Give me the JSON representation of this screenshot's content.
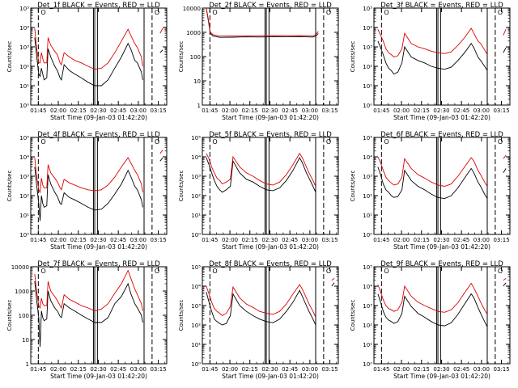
{
  "colors": {
    "events": "#000000",
    "lld": "#dd0000",
    "axis": "#000000",
    "background": "#ffffff"
  },
  "common": {
    "xlabel": "Start Time (09-Jan-03 01:42:20)",
    "ylabel": "Counts/sec",
    "xtick_labels": [
      "01:45",
      "02:00",
      "02:15",
      "02:30",
      "02:45",
      "03:00",
      "03:15"
    ],
    "xtick_minutes": [
      2.67,
      17.67,
      32.67,
      47.67,
      62.67,
      77.67,
      92.67
    ],
    "xlim_minutes": [
      -3,
      99
    ],
    "corner_glyph": "O"
  },
  "chart_data": [
    {
      "type": "line",
      "title": "Det_1f BLACK = Events, RED = LLD",
      "yscale": "log",
      "ylim": [
        1,
        100000
      ],
      "ytick_labels": [
        "10⁰",
        "10¹",
        "10²",
        "10³",
        "10⁴",
        "10⁵"
      ],
      "x_minutes": [
        0,
        1.5,
        3,
        4,
        5,
        6,
        7,
        9,
        10,
        12,
        15,
        17,
        19,
        20,
        22,
        26,
        30,
        35,
        40,
        45,
        50,
        55,
        60,
        65,
        70,
        72,
        75,
        77,
        80,
        81,
        82,
        83,
        86,
        88,
        90,
        92,
        94,
        96
      ],
      "series": [
        {
          "name": "Events",
          "values": [
            3000,
            300,
            40,
            30,
            80,
            40,
            20,
            25,
            800,
            300,
            100,
            60,
            25,
            20,
            120,
            60,
            40,
            25,
            15,
            10,
            10,
            20,
            80,
            300,
            1500,
            800,
            200,
            150,
            50,
            20,
            null,
            null,
            null,
            null,
            null,
            null,
            500,
            700
          ]
        },
        {
          "name": "LLD",
          "values": [
            9000,
            800,
            150,
            150,
            500,
            250,
            150,
            150,
            3000,
            1200,
            600,
            400,
            150,
            120,
            500,
            300,
            200,
            150,
            100,
            70,
            80,
            150,
            500,
            2000,
            8000,
            4000,
            1500,
            900,
            300,
            100,
            null,
            null,
            null,
            null,
            null,
            null,
            5000,
            9000
          ]
        }
      ],
      "vlines_dashed": [
        2.67,
        88
      ],
      "vlines_solid": [
        44,
        45,
        47,
        82
      ]
    },
    {
      "type": "line",
      "title": "Det_2f BLACK = Events, RED = LLD",
      "yscale": "log",
      "ylim": [
        1,
        10000
      ],
      "ytick_labels": [
        "1",
        "10",
        "100",
        "1000",
        "10000"
      ],
      "x_minutes": [
        0,
        1.5,
        3,
        5,
        10,
        20,
        30,
        40,
        50,
        60,
        70,
        75,
        80,
        82,
        84,
        86,
        88,
        90,
        92,
        94,
        96
      ],
      "series": [
        {
          "name": "Events",
          "values": [
            12000,
            3000,
            900,
            700,
            620,
            630,
            650,
            640,
            660,
            650,
            660,
            650,
            640,
            700,
            900,
            null,
            null,
            null,
            null,
            null,
            null
          ]
        },
        {
          "name": "LLD",
          "values": [
            14000,
            3500,
            1000,
            800,
            700,
            700,
            720,
            720,
            740,
            730,
            740,
            730,
            720,
            800,
            1100,
            null,
            null,
            null,
            null,
            null,
            null
          ]
        }
      ],
      "vlines_dashed": [
        2.67,
        88
      ],
      "vlines_solid": [
        44,
        45,
        47,
        82
      ]
    },
    {
      "type": "line",
      "title": "Det_3f BLACK = Events, RED = LLD",
      "yscale": "log",
      "ylim": [
        1,
        100000
      ],
      "ytick_labels": [
        "10⁰",
        "10¹",
        "10²",
        "10³",
        "10⁴",
        "10⁵"
      ],
      "x_minutes": [
        0,
        2,
        4,
        6,
        8,
        10,
        12,
        15,
        18,
        20,
        25,
        30,
        35,
        40,
        45,
        50,
        55,
        60,
        65,
        70,
        72,
        75,
        77,
        80,
        82,
        86,
        88,
        90,
        92,
        94,
        96
      ],
      "series": [
        {
          "name": "Events",
          "values": [
            2000,
            900,
            400,
            150,
            80,
            60,
            40,
            50,
            150,
            1000,
            300,
            200,
            150,
            100,
            80,
            70,
            90,
            200,
            500,
            1500,
            900,
            300,
            200,
            100,
            60,
            null,
            null,
            null,
            null,
            500,
            900
          ]
        },
        {
          "name": "LLD",
          "values": [
            8000,
            4000,
            2000,
            800,
            500,
            400,
            300,
            350,
            800,
            5000,
            1500,
            1000,
            800,
            600,
            500,
            450,
            550,
            1200,
            3000,
            9000,
            5000,
            2000,
            1500,
            700,
            400,
            null,
            null,
            null,
            null,
            4000,
            8000
          ]
        }
      ],
      "vlines_dashed": [
        2.67,
        88
      ],
      "vlines_solid": [
        44,
        45,
        47,
        82
      ]
    },
    {
      "type": "line",
      "title": "Det_4f BLACK = Events, RED = LLD",
      "yscale": "log",
      "ylim": [
        1,
        100000
      ],
      "ytick_labels": [
        "10⁰",
        "10¹",
        "10²",
        "10³",
        "10⁴",
        "10⁵"
      ],
      "x_minutes": [
        0,
        1.5,
        3,
        4,
        5,
        6,
        7,
        9,
        10,
        12,
        15,
        17,
        19,
        20,
        22,
        26,
        30,
        35,
        40,
        45,
        50,
        55,
        60,
        65,
        70,
        72,
        75,
        77,
        80,
        81,
        82,
        84,
        86,
        88,
        90,
        92,
        94,
        96
      ],
      "series": [
        {
          "name": "Events",
          "values": [
            3000,
            300,
            40,
            5,
            100,
            40,
            25,
            30,
            1200,
            400,
            150,
            90,
            40,
            35,
            140,
            80,
            60,
            40,
            25,
            18,
            20,
            40,
            120,
            400,
            2000,
            1000,
            300,
            200,
            60,
            25,
            null,
            null,
            null,
            null,
            null,
            null,
            6000,
            9000
          ]
        },
        {
          "name": "LLD",
          "values": [
            9000,
            900,
            200,
            150,
            800,
            350,
            250,
            250,
            4000,
            1500,
            800,
            500,
            250,
            200,
            700,
            450,
            350,
            250,
            200,
            180,
            200,
            350,
            900,
            3000,
            9000,
            5000,
            2000,
            1200,
            400,
            150,
            null,
            null,
            null,
            null,
            null,
            null,
            15000,
            22000
          ]
        }
      ],
      "vlines_dashed": [
        2.67,
        88
      ],
      "vlines_solid": [
        44,
        45,
        47,
        82
      ]
    },
    {
      "type": "line",
      "title": "Det_5f BLACK = Events, RED = LLD",
      "yscale": "log",
      "ylim": [
        1,
        100000
      ],
      "ytick_labels": [
        "10⁰",
        "10¹",
        "10²",
        "10³",
        "10⁴",
        "10⁵"
      ],
      "x_minutes": [
        0,
        2,
        4,
        6,
        8,
        10,
        12,
        15,
        18,
        20,
        25,
        30,
        35,
        40,
        45,
        50,
        55,
        60,
        65,
        70,
        72,
        75,
        77,
        80,
        82,
        86,
        88,
        90,
        92,
        94,
        96
      ],
      "series": [
        {
          "name": "Events",
          "values": [
            9000,
            4000,
            1500,
            600,
            300,
            200,
            150,
            200,
            300,
            6000,
            1500,
            700,
            500,
            300,
            200,
            180,
            250,
            600,
            2000,
            9000,
            5000,
            1500,
            800,
            300,
            150,
            null,
            null,
            null,
            null,
            null,
            null
          ]
        },
        {
          "name": "LLD",
          "values": [
            15000,
            8000,
            3000,
            1500,
            800,
            600,
            400,
            500,
            700,
            10000,
            3000,
            1500,
            1000,
            600,
            400,
            350,
            500,
            1200,
            4000,
            15000,
            9000,
            3000,
            1500,
            600,
            300,
            null,
            null,
            null,
            null,
            null,
            null
          ]
        }
      ],
      "vlines_dashed": [
        2.67,
        88
      ],
      "vlines_solid": [
        44,
        45,
        47,
        82
      ]
    },
    {
      "type": "line",
      "title": "Det_6f BLACK = Events, RED = LLD",
      "yscale": "log",
      "ylim": [
        1,
        100000
      ],
      "ytick_labels": [
        "10⁰",
        "10¹",
        "10²",
        "10³",
        "10⁴",
        "10⁵"
      ],
      "x_minutes": [
        0,
        2,
        4,
        6,
        8,
        10,
        12,
        15,
        18,
        20,
        25,
        30,
        35,
        40,
        45,
        50,
        55,
        60,
        65,
        70,
        72,
        75,
        77,
        80,
        82,
        86,
        88,
        90,
        92,
        94,
        96
      ],
      "series": [
        {
          "name": "Events",
          "values": [
            3000,
            1200,
            400,
            200,
            150,
            100,
            80,
            90,
            200,
            2000,
            600,
            300,
            200,
            120,
            80,
            70,
            100,
            250,
            800,
            2500,
            1500,
            500,
            300,
            120,
            70,
            null,
            null,
            null,
            null,
            1500,
            2500
          ]
        },
        {
          "name": "LLD",
          "values": [
            10000,
            5000,
            2000,
            900,
            600,
            450,
            350,
            400,
            900,
            8000,
            2500,
            1200,
            800,
            500,
            350,
            300,
            400,
            1000,
            3000,
            9000,
            6000,
            2000,
            1200,
            500,
            300,
            null,
            null,
            null,
            null,
            8000,
            12000
          ]
        }
      ],
      "vlines_dashed": [
        2.67,
        88
      ],
      "vlines_solid": [
        44,
        45,
        47,
        82
      ]
    },
    {
      "type": "line",
      "title": "Det_7f BLACK = Events, RED = LLD",
      "yscale": "log",
      "ylim": [
        1,
        10000
      ],
      "ytick_labels": [
        "1",
        "10",
        "100",
        "1000",
        "10000"
      ],
      "x_minutes": [
        0,
        1.5,
        3,
        4,
        5,
        6,
        7,
        9,
        10,
        12,
        15,
        17,
        19,
        20,
        22,
        26,
        30,
        35,
        40,
        45,
        50,
        55,
        60,
        65,
        70,
        72,
        75,
        77,
        80,
        81,
        82,
        84,
        86,
        88,
        90,
        92,
        94,
        96
      ],
      "series": [
        {
          "name": "Events",
          "values": [
            2500,
            400,
            80,
            5,
            150,
            80,
            60,
            70,
            1000,
            400,
            200,
            150,
            90,
            80,
            300,
            200,
            150,
            100,
            70,
            50,
            50,
            80,
            300,
            600,
            2000,
            800,
            300,
            200,
            100,
            50,
            null,
            null,
            null,
            null,
            null,
            null,
            null,
            null
          ]
        },
        {
          "name": "LLD",
          "values": [
            5000,
            900,
            250,
            200,
            500,
            300,
            250,
            250,
            2500,
            1000,
            600,
            400,
            250,
            200,
            700,
            450,
            350,
            250,
            200,
            150,
            180,
            300,
            800,
            2000,
            7000,
            3500,
            1200,
            700,
            300,
            150,
            null,
            null,
            null,
            null,
            null,
            null,
            null,
            null
          ]
        }
      ],
      "vlines_dashed": [
        2.67,
        88
      ],
      "vlines_solid": [
        44,
        45,
        47,
        82
      ]
    },
    {
      "type": "line",
      "title": "Det_8f BLACK = Events, RED = LLD",
      "yscale": "log",
      "ylim": [
        1,
        100000
      ],
      "ytick_labels": [
        "10⁰",
        "10¹",
        "10²",
        "10³",
        "10⁴",
        "10⁵"
      ],
      "x_minutes": [
        0,
        2,
        4,
        6,
        8,
        10,
        12,
        15,
        18,
        20,
        25,
        30,
        35,
        40,
        45,
        50,
        55,
        60,
        65,
        70,
        72,
        75,
        77,
        80,
        82,
        86,
        88,
        90,
        92,
        94,
        96
      ],
      "series": [
        {
          "name": "Events",
          "values": [
            5000,
            1500,
            500,
            200,
            150,
            120,
            100,
            120,
            300,
            4000,
            1000,
            500,
            300,
            200,
            150,
            130,
            200,
            500,
            1500,
            6000,
            3000,
            1000,
            500,
            200,
            100,
            null,
            null,
            null,
            null,
            10000,
            15000
          ]
        },
        {
          "name": "LLD",
          "values": [
            10000,
            4000,
            1500,
            700,
            500,
            400,
            300,
            400,
            900,
            9000,
            2500,
            1200,
            800,
            500,
            400,
            350,
            500,
            1200,
            4000,
            12000,
            7000,
            2500,
            1200,
            500,
            250,
            null,
            null,
            null,
            null,
            20000,
            25000
          ]
        }
      ],
      "vlines_dashed": [
        2.67,
        88
      ],
      "vlines_solid": [
        44,
        45,
        47,
        82
      ]
    },
    {
      "type": "line",
      "title": "Det_9f BLACK = Events, RED = LLD",
      "yscale": "log",
      "ylim": [
        1,
        100000
      ],
      "ytick_labels": [
        "10⁰",
        "10¹",
        "10²",
        "10³",
        "10⁴",
        "10⁵"
      ],
      "x_minutes": [
        0,
        2,
        4,
        6,
        8,
        10,
        12,
        15,
        18,
        20,
        25,
        30,
        35,
        40,
        45,
        50,
        55,
        60,
        65,
        70,
        72,
        75,
        77,
        80,
        82,
        86,
        88,
        90,
        92,
        94,
        96
      ],
      "series": [
        {
          "name": "Events",
          "values": [
            4000,
            1500,
            500,
            250,
            180,
            150,
            120,
            150,
            400,
            3000,
            900,
            400,
            250,
            150,
            100,
            90,
            130,
            350,
            1200,
            4000,
            2500,
            800,
            400,
            150,
            80,
            null,
            null,
            null,
            null,
            10000,
            15000
          ]
        },
        {
          "name": "LLD",
          "values": [
            12000,
            5000,
            2000,
            1000,
            700,
            600,
            500,
            600,
            1500,
            10000,
            3000,
            1500,
            1000,
            700,
            500,
            450,
            600,
            1400,
            4500,
            14000,
            8000,
            3000,
            1500,
            600,
            350,
            null,
            null,
            null,
            null,
            20000,
            25000
          ]
        }
      ],
      "vlines_dashed": [
        2.67,
        88
      ],
      "vlines_solid": [
        44,
        45,
        47,
        82
      ]
    }
  ]
}
